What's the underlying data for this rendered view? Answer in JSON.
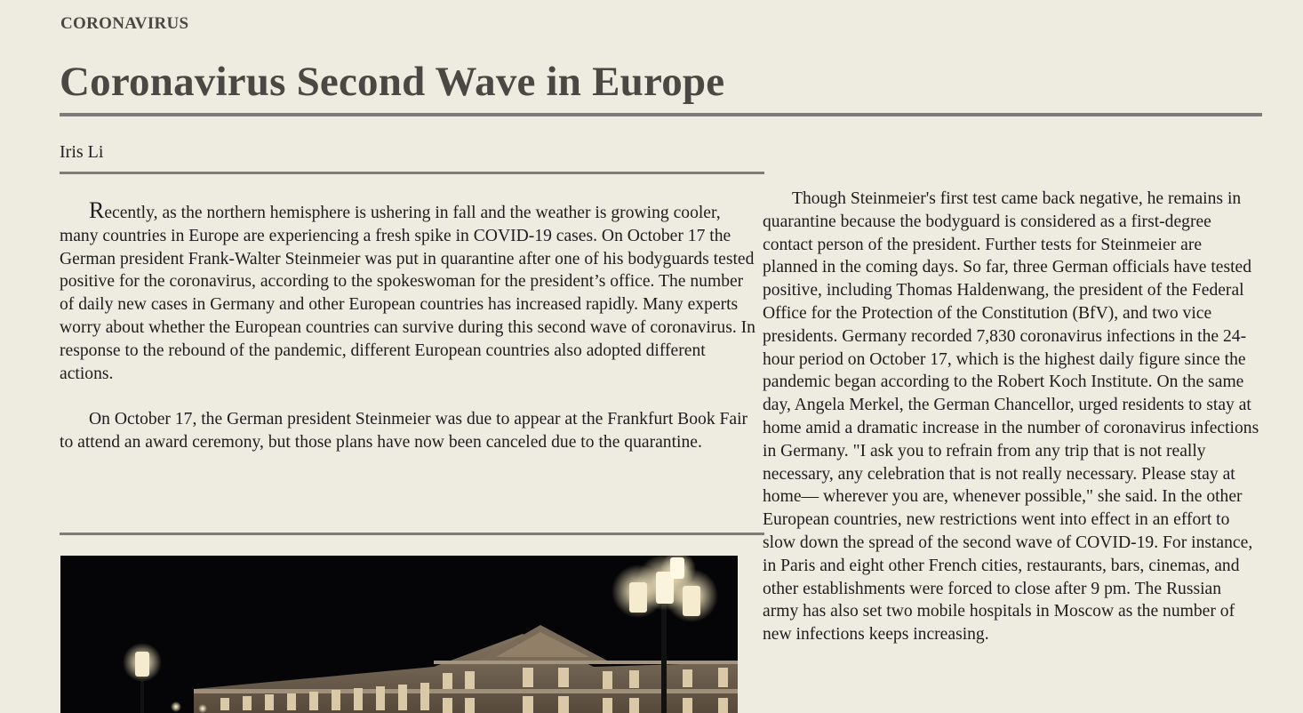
{
  "article": {
    "section_label": "CORONAVIRUS",
    "headline": "Coronavirus Second Wave in Europe",
    "author": "Iris Li",
    "left_column": {
      "p1_dropcap": "R",
      "p1_rest": "ecently, as the northern hemisphere is ushering in fall and the weather is growing cooler, many countries in Europe are experiencing a fresh spike in COVID-19 cases. On October 17 the German president Frank-Walter Steinmeier was put in quarantine after one of his bodyguards tested positive for the coronavirus, according to the spokeswoman for the president’s office. The number of daily new cases in Germany and other European countries has increased rapidly. Many experts worry about whether the European countries can survive during this second wave of coronavirus. In response to the rebound of the pandemic, different European countries also adopted different actions.",
      "p2": "On October 17, the German president Steinmeier was due to appear at the Frankfurt Book Fair to attend an award ceremony, but those plans have now been canceled due to the quarantine."
    },
    "right_column": {
      "p1": "Though Steinmeier's first test came back negative, he remains in quarantine because the bodyguard is considered as a first-degree contact person of the president. Further tests for Steinmeier are planned in the coming days. So far, three German officials have tested positive, including Thomas Haldenwang, the president of the Federal Office for the Protection of the Constitution (BfV), and two vice presidents. Germany recorded 7,830 coronavirus infections in the 24-hour period on October 17, which is the highest daily figure since the pandemic began according to the Robert Koch Institute. On the same day, Angela Merkel, the German Chancellor, urged residents to stay at home amid a dramatic increase in the number of coronavirus infections in Germany. \"I ask you to refrain from any trip that is not really necessary, any celebration that is not really necessary. Please stay at home— wherever you are, whenever possible,\" she said. In the other European countries, new restrictions went into effect in an effort to slow down the spread of the second wave of COVID-19. For instance, in Paris and eight other French cities, restaurants, bars, cinemas, and other establishments were forced to close after 9 pm. The Russian army has also set two mobile hospitals in Moscow as the number of new infections keeps increasing."
    }
  },
  "colors": {
    "background": "#eeebe1",
    "headline": "#4a4843",
    "rule": "#7e7c7a"
  },
  "icons": {
    "photo": "night-street-lamps-photo"
  }
}
